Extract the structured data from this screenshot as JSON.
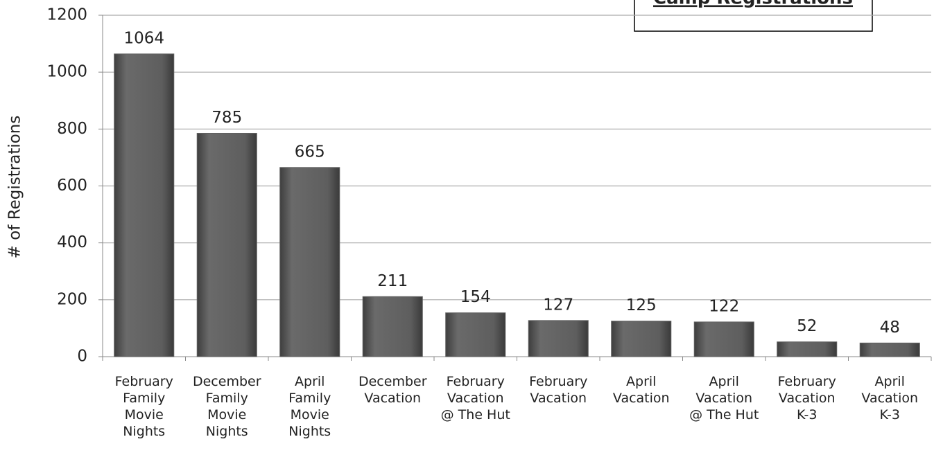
{
  "chart_data": {
    "type": "bar",
    "title": "Camp Registrations",
    "y_label": "# of Registrations",
    "categories": [
      [
        "February",
        "Family",
        "Movie",
        "Nights"
      ],
      [
        "December",
        "Family",
        "Movie",
        "Nights"
      ],
      [
        "April",
        "Family",
        "Movie",
        "Nights"
      ],
      [
        "December",
        "Vacation"
      ],
      [
        "February",
        "Vacation",
        "@ The Hut"
      ],
      [
        "February",
        "Vacation"
      ],
      [
        "April",
        "Vacation"
      ],
      [
        "April",
        "Vacation",
        "@ The Hut"
      ],
      [
        "February",
        "Vacation",
        "K-3"
      ],
      [
        "April",
        "Vacation",
        "K-3"
      ]
    ],
    "values": [
      1064,
      785,
      665,
      211,
      154,
      127,
      125,
      122,
      52,
      48
    ],
    "color": "#606060",
    "ylim": [
      0,
      1200
    ],
    "yticks": [
      0,
      200,
      400,
      600,
      800,
      1000,
      1200
    ],
    "grid": true
  }
}
